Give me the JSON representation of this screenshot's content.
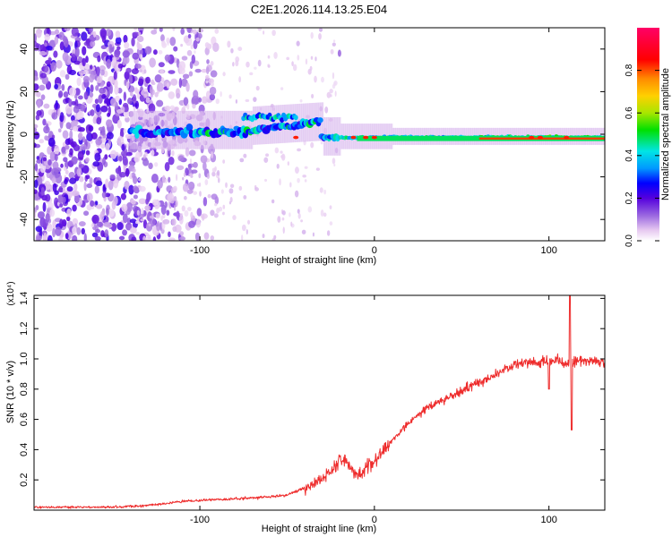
{
  "title": "C2E1.2026.114.13.25.E04",
  "colors": {
    "snr_line": "#ee2c2c",
    "axis": "#000000",
    "background": "#ffffff"
  },
  "chart_data": [
    {
      "type": "heatmap",
      "xlabel": "Height of straight line (km)",
      "ylabel": "Frequency (Hz)",
      "xlim": [
        -195,
        132
      ],
      "ylim": [
        -50,
        50
      ],
      "x_ticks": [
        -100,
        0,
        100
      ],
      "x_tick_labels": [
        "-100",
        "0",
        "100"
      ],
      "y_ticks": [
        -40,
        -20,
        0,
        20,
        40
      ],
      "y_tick_labels": [
        "-40",
        "-20",
        "0",
        "20",
        "40"
      ],
      "colorbar": {
        "label": "Normalized spectral amplitude",
        "range": [
          0,
          1
        ],
        "ticks": [
          0.0,
          0.2,
          0.4,
          0.6,
          0.8
        ],
        "tick_labels": [
          "0.0",
          "0.2",
          "0.4",
          "0.6",
          "0.8"
        ],
        "palette": [
          "#ffffff",
          "#e6c8f0",
          "#9966e0",
          "#5500dd",
          "#0000ff",
          "#0099ff",
          "#00e5e5",
          "#00e000",
          "#a8e600",
          "#ffd000",
          "#ff8c00",
          "#ff0000",
          "#ff0066"
        ]
      },
      "features": {
        "noise_region_x": [
          -195,
          -115
        ],
        "transition_region_x": [
          -140,
          -20
        ],
        "main_band_frequency_hz": -2,
        "branch_near_x_-60_frequency_hz": 8,
        "isolated_tone_x": -20,
        "isolated_tone_frequency_hz": 38
      }
    },
    {
      "type": "line",
      "xlabel": "Height of straight line (km)",
      "ylabel": "SNR (10 * v/v)",
      "y_multiplier": "(x10⁴)",
      "xlim": [
        -195,
        132
      ],
      "ylim": [
        0,
        1.42
      ],
      "x_ticks": [
        -100,
        0,
        100
      ],
      "x_tick_labels": [
        "-100",
        "0",
        "100"
      ],
      "y_ticks": [
        0.2,
        0.4,
        0.6,
        0.8,
        1.0,
        1.2,
        1.4
      ],
      "y_tick_labels": [
        "0.2",
        "0.4",
        "0.6",
        "0.8",
        "1.0",
        "1.2",
        "1.4"
      ],
      "series": [
        {
          "name": "SNR",
          "x": [
            -195,
            -170,
            -150,
            -130,
            -110,
            -90,
            -70,
            -50,
            -35,
            -25,
            -18,
            -10,
            0,
            10,
            20,
            30,
            40,
            50,
            60,
            70,
            80,
            90,
            100,
            105,
            110,
            115,
            120,
            132
          ],
          "y": [
            0.02,
            0.02,
            0.02,
            0.03,
            0.06,
            0.07,
            0.08,
            0.1,
            0.17,
            0.26,
            0.35,
            0.22,
            0.33,
            0.46,
            0.58,
            0.68,
            0.73,
            0.79,
            0.84,
            0.9,
            0.96,
            0.98,
            0.98,
            0.99,
            0.97,
            0.99,
            0.99,
            0.97
          ]
        }
      ],
      "annotations": [
        {
          "x": 100,
          "y": 0.8,
          "note": "dip"
        },
        {
          "x": 112,
          "y": 1.42,
          "note": "spike"
        },
        {
          "x": 113,
          "y": 0.53,
          "note": "dip"
        }
      ]
    }
  ]
}
